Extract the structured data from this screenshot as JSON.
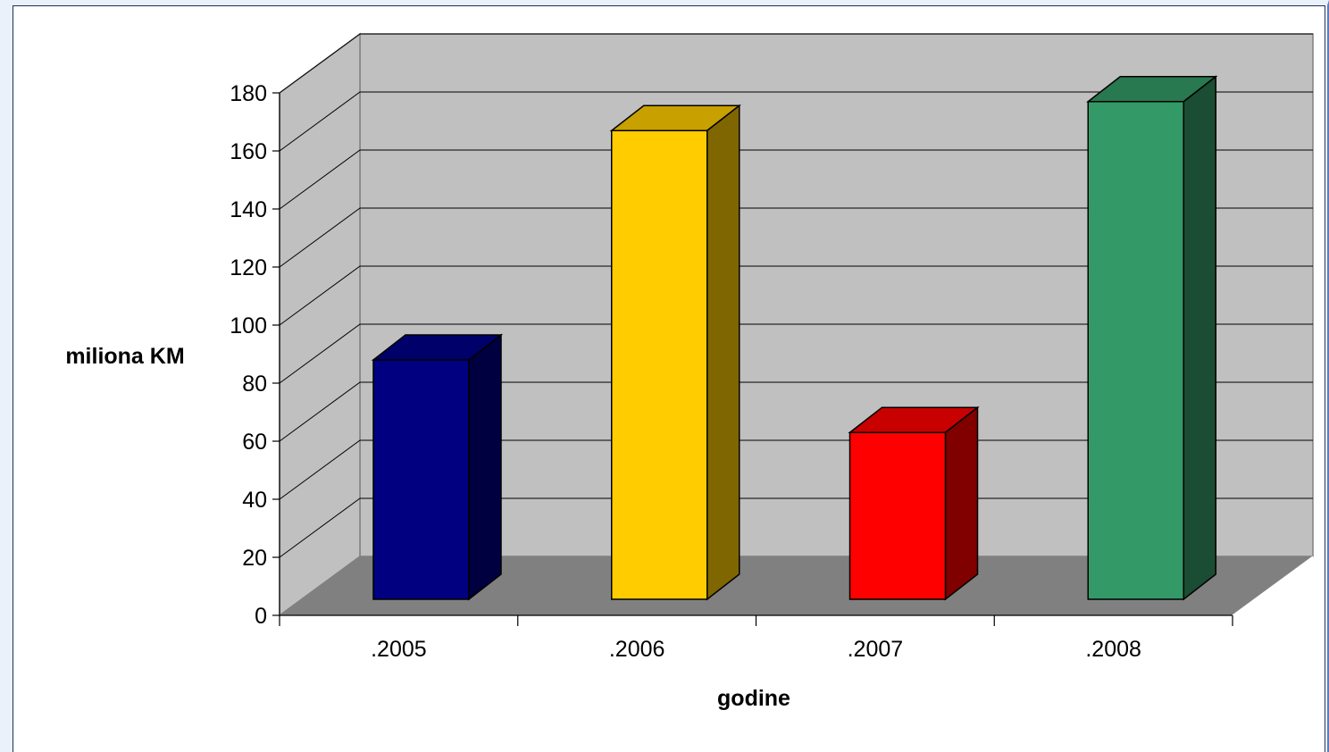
{
  "chart_data": {
    "type": "bar",
    "categories": [
      ".2005",
      ".2006",
      ".2007",
      ".2008"
    ],
    "values": [
      88,
      167,
      63,
      177
    ],
    "title": "",
    "xlabel": "godine",
    "ylabel": "miliona KM",
    "ylim": [
      0,
      180
    ],
    "yticks": [
      "0",
      "20",
      "40",
      "60",
      "80",
      "100",
      "120",
      "140",
      "160",
      "180"
    ],
    "grid": true,
    "legend": "none",
    "colors": {
      "front": [
        "#000080",
        "#FFCC00",
        "#FF0000",
        "#339966"
      ],
      "top": [
        "#00006A",
        "#C8A000",
        "#C80000",
        "#287850"
      ],
      "side": [
        "#000040",
        "#806600",
        "#800000",
        "#1A4D33"
      ],
      "back_wall": "#C0C0C0",
      "floor": "#808080",
      "frame_accent": "#EAF1FB"
    }
  }
}
